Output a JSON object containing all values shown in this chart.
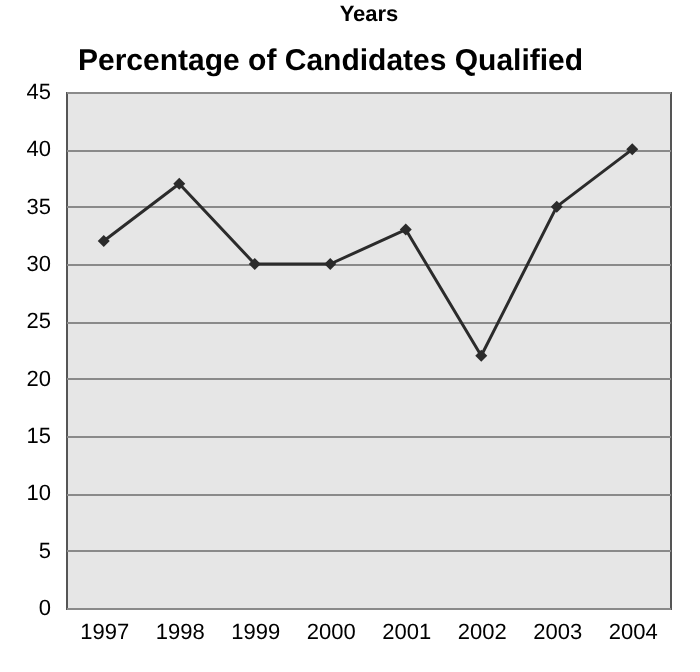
{
  "chart_data": {
    "type": "line",
    "title": "Percentage of Candidates Qualified",
    "xlabel": "Years",
    "categories": [
      "1997",
      "1998",
      "1999",
      "2000",
      "2001",
      "2002",
      "2003",
      "2004"
    ],
    "series": [
      {
        "color": "#2b2b2b",
        "values": [
          32,
          37,
          30,
          30,
          33,
          22,
          35,
          40
        ]
      }
    ],
    "ylim": [
      0,
      45
    ],
    "yticks": [
      0,
      5,
      10,
      15,
      20,
      25,
      30,
      35,
      40,
      45
    ],
    "grid": "y",
    "marker": "diamond",
    "line_style": "solid"
  }
}
